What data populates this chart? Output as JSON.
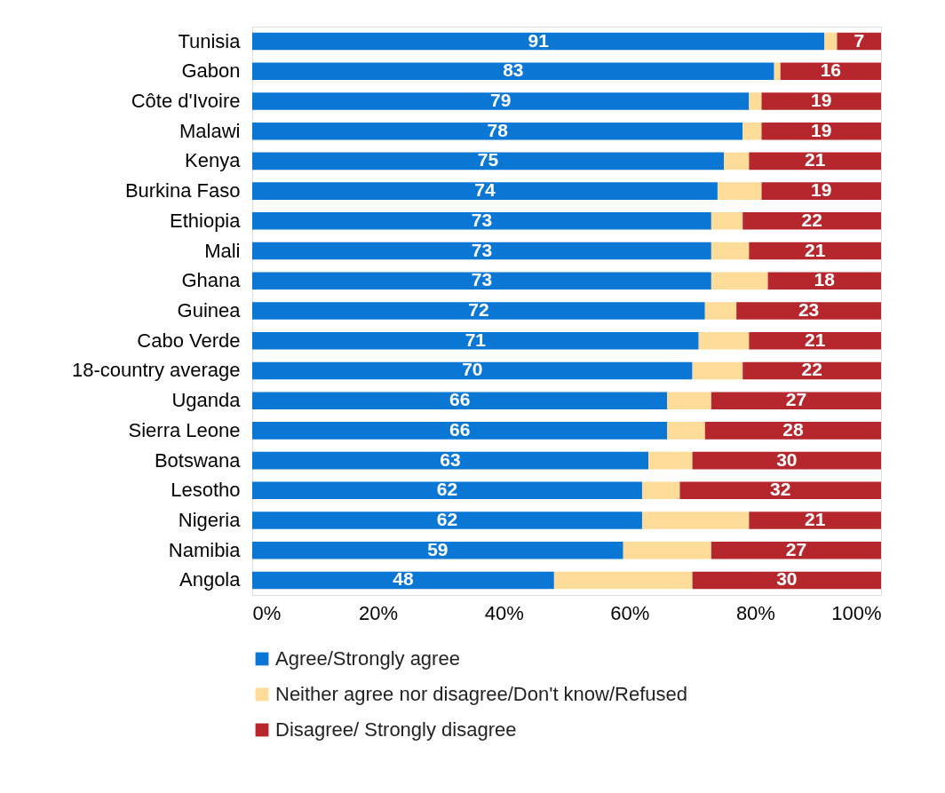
{
  "chart_data": {
    "type": "bar",
    "orientation": "horizontal",
    "stacked": true,
    "categories": [
      "Tunisia",
      "Gabon",
      "Côte d'Ivoire",
      "Malawi",
      "Kenya",
      "Burkina Faso",
      "Ethiopia",
      "Mali",
      "Ghana",
      "Guinea",
      "Cabo Verde",
      "18-country average",
      "Uganda",
      "Sierra Leone",
      "Botswana",
      "Lesotho",
      "Nigeria",
      "Namibia",
      "Angola"
    ],
    "series": [
      {
        "name": "Agree/Strongly agree",
        "color": "#0a77d5",
        "values": [
          91,
          83,
          79,
          78,
          75,
          74,
          73,
          73,
          73,
          72,
          71,
          70,
          66,
          66,
          63,
          62,
          62,
          59,
          48
        ],
        "value_labels": [
          "91",
          "83",
          "79",
          "78",
          "75",
          "74",
          "73",
          "73",
          "73",
          "72",
          "71",
          "70",
          "66",
          "66",
          "63",
          "62",
          "62",
          "59",
          "48"
        ]
      },
      {
        "name": "Neither agree nor disagree/Don't know/Refused",
        "color": "#fddc9a",
        "values": [
          2,
          1,
          2,
          3,
          4,
          7,
          5,
          6,
          9,
          5,
          8,
          8,
          7,
          6,
          7,
          6,
          17,
          14,
          22
        ]
      },
      {
        "name": "Disagree/ Strongly disagree",
        "color": "#b5272d",
        "values": [
          7,
          16,
          19,
          19,
          21,
          19,
          22,
          21,
          18,
          23,
          21,
          22,
          27,
          28,
          30,
          32,
          21,
          27,
          30
        ],
        "value_labels": [
          "7",
          "16",
          "19",
          "19",
          "21",
          "19",
          "22",
          "21",
          "18",
          "23",
          "21",
          "22",
          "27",
          "28",
          "30",
          "32",
          "21",
          "27",
          "30"
        ]
      }
    ],
    "xlim": [
      0,
      100
    ],
    "xticks": [
      {
        "value": 0,
        "label": "0%"
      },
      {
        "value": 20,
        "label": "20%"
      },
      {
        "value": 40,
        "label": "40%"
      },
      {
        "value": 60,
        "label": "60%"
      },
      {
        "value": 80,
        "label": "80%"
      },
      {
        "value": 100,
        "label": "100%"
      }
    ],
    "grid": false,
    "legend": "bottom"
  }
}
